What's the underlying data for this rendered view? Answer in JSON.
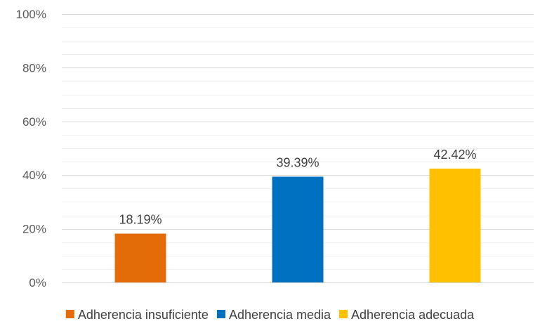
{
  "chart_data": {
    "type": "bar",
    "categories": [
      "Adherencia insuficiente",
      "Adherencia media",
      "Adherencia adecuada"
    ],
    "values": [
      18.19,
      39.39,
      42.42
    ],
    "data_labels": [
      "18.19%",
      "39.39%",
      "42.42%"
    ],
    "colors": [
      "#E36C09",
      "#0070C0",
      "#FFC000"
    ],
    "ylim": [
      0,
      100
    ],
    "yticks": [
      0,
      20,
      40,
      60,
      80,
      100
    ],
    "ytick_labels": [
      "0%",
      "20%",
      "40%",
      "60%",
      "80%",
      "100%"
    ],
    "gridlines": true,
    "legend_position": "bottom",
    "title": "",
    "xlabel": "",
    "ylabel": ""
  }
}
